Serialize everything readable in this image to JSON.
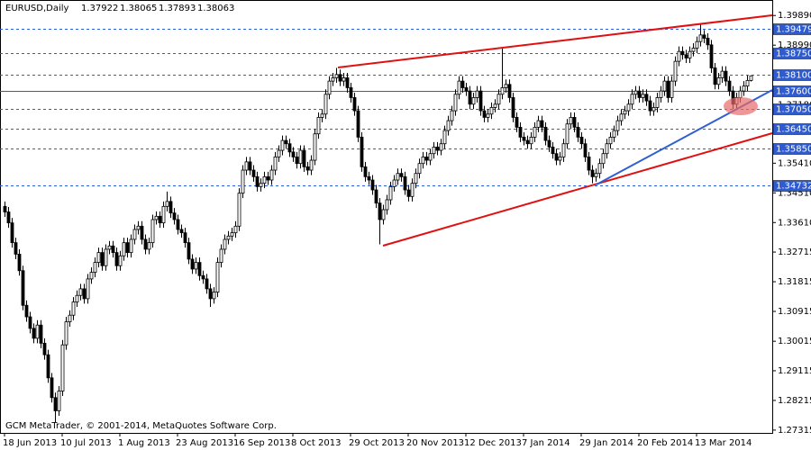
{
  "chart_data": {
    "type": "candlestick",
    "title": "EURUSD,Daily",
    "header_values": [
      1.37922,
      1.38065,
      1.37893,
      1.38063
    ],
    "footer": "GCM MetaTrader, © 2001-2014, MetaQuotes Software Corp.",
    "categories": [
      "18 Jun 2013",
      null,
      null,
      null,
      null,
      null,
      null,
      null,
      null,
      null,
      null,
      null,
      null,
      null,
      null,
      null,
      "10 Jul 2013",
      null,
      null,
      null,
      null,
      null,
      null,
      null,
      null,
      null,
      null,
      null,
      null,
      null,
      null,
      null,
      "1 Aug 2013",
      null,
      null,
      null,
      null,
      null,
      null,
      null,
      null,
      null,
      null,
      null,
      null,
      null,
      null,
      null,
      "23 Aug 2013",
      null,
      null,
      null,
      null,
      null,
      null,
      null,
      null,
      null,
      null,
      null,
      null,
      null,
      null,
      null,
      "16 Sep 2013",
      null,
      null,
      null,
      null,
      null,
      null,
      null,
      null,
      null,
      null,
      null,
      null,
      null,
      null,
      null,
      "8 Oct 2013",
      null,
      null,
      null,
      null,
      null,
      null,
      null,
      null,
      null,
      null,
      null,
      null,
      null,
      null,
      null,
      "29 Oct 2013",
      null,
      null,
      null,
      null,
      null,
      null,
      null,
      null,
      null,
      null,
      null,
      null,
      null,
      null,
      null,
      "20 Nov 2013",
      null,
      null,
      null,
      null,
      null,
      null,
      null,
      null,
      null,
      null,
      null,
      null,
      null,
      null,
      null,
      "12 Dec 2013",
      null,
      null,
      null,
      null,
      null,
      null,
      null,
      null,
      null,
      null,
      null,
      null,
      null,
      null,
      null,
      "7 Jan 2014",
      null,
      null,
      null,
      null,
      null,
      null,
      null,
      null,
      null,
      null,
      null,
      null,
      null,
      null,
      null,
      "29 Jan 2014",
      null,
      null,
      null,
      null,
      null,
      null,
      null,
      null,
      null,
      null,
      null,
      null,
      null,
      null,
      null,
      "20 Feb 2014",
      null,
      null,
      null,
      null,
      null,
      null,
      null,
      null,
      null,
      null,
      null,
      null,
      null,
      null,
      null,
      "13 Mar 2014",
      null,
      null,
      null,
      null,
      null,
      null,
      null,
      null,
      null,
      null,
      null,
      null,
      null,
      null,
      null
    ],
    "open": [
      1.341,
      1.3393,
      1.336,
      1.33,
      1.3265,
      1.3215,
      1.311,
      1.3075,
      1.304,
      1.301,
      1.305,
      1.2995,
      1.296,
      1.289,
      1.283,
      1.279,
      1.285,
      1.299,
      1.306,
      1.308,
      1.312,
      1.314,
      1.316,
      1.313,
      1.319,
      1.321,
      1.324,
      1.327,
      1.323,
      1.328,
      1.329,
      1.327,
      1.323,
      1.326,
      1.33,
      1.327,
      1.331,
      1.334,
      1.335,
      1.331,
      1.328,
      1.33,
      1.337,
      1.338,
      1.336,
      1.341,
      1.3425,
      1.339,
      1.337,
      1.334,
      1.333,
      1.33,
      1.325,
      1.322,
      1.324,
      1.32,
      1.319,
      1.316,
      1.313,
      1.315,
      1.324,
      1.328,
      1.331,
      1.332,
      1.333,
      1.335,
      1.345,
      1.352,
      1.3545,
      1.352,
      1.35,
      1.347,
      1.348,
      1.35,
      1.349,
      1.352,
      1.356,
      1.358,
      1.361,
      1.36,
      1.3575,
      1.356,
      1.354,
      1.358,
      1.353,
      1.352,
      1.355,
      1.363,
      1.368,
      1.369,
      1.375,
      1.379,
      1.38,
      1.381,
      1.379,
      1.38,
      1.377,
      1.374,
      1.37,
      1.362,
      1.353,
      1.35,
      1.349,
      1.346,
      1.342,
      1.337,
      1.34,
      1.343,
      1.347,
      1.349,
      1.351,
      1.35,
      1.346,
      1.344,
      1.348,
      1.351,
      1.354,
      1.356,
      1.355,
      1.357,
      1.359,
      1.358,
      1.36,
      1.364,
      1.367,
      1.37,
      1.375,
      1.379,
      1.377,
      1.376,
      1.372,
      1.374,
      1.376,
      1.37,
      1.368,
      1.369,
      1.371,
      1.372,
      1.375,
      1.377,
      1.378,
      1.374,
      1.368,
      1.365,
      1.362,
      1.361,
      1.36,
      1.362,
      1.365,
      1.367,
      1.365,
      1.361,
      1.359,
      1.357,
      1.355,
      1.356,
      1.36,
      1.366,
      1.368,
      1.365,
      1.362,
      1.36,
      1.356,
      1.352,
      1.35,
      1.351,
      1.354,
      1.357,
      1.36,
      1.362,
      1.364,
      1.367,
      1.369,
      1.37,
      1.372,
      1.375,
      1.376,
      1.374,
      1.375,
      1.373,
      1.37,
      1.371,
      1.374,
      1.376,
      1.379,
      1.374,
      1.379,
      1.385,
      1.388,
      1.387,
      1.386,
      1.388,
      1.389,
      1.391,
      1.393,
      1.392,
      1.39,
      1.383,
      1.378,
      1.38,
      1.382,
      1.379,
      1.376,
      1.372,
      1.374,
      1.376,
      1.3775,
      1.3792
    ],
    "high": [
      1.3425,
      1.3408,
      1.3375,
      1.3315,
      1.328,
      1.323,
      1.3125,
      1.309,
      1.3055,
      1.3065,
      1.3065,
      1.301,
      1.2975,
      1.2905,
      1.2845,
      1.2865,
      1.3005,
      1.3075,
      1.3095,
      1.3135,
      1.3155,
      1.3175,
      1.3175,
      1.3205,
      1.3225,
      1.3255,
      1.3285,
      1.3285,
      1.3295,
      1.3305,
      1.3305,
      1.3285,
      1.3275,
      1.3315,
      1.3315,
      1.3325,
      1.3355,
      1.3365,
      1.3365,
      1.3325,
      1.3315,
      1.3385,
      1.3395,
      1.3395,
      1.3425,
      1.3455,
      1.344,
      1.3405,
      1.3385,
      1.3355,
      1.3345,
      1.3315,
      1.3265,
      1.3255,
      1.3255,
      1.3215,
      1.3205,
      1.3175,
      1.3165,
      1.3255,
      1.3295,
      1.3325,
      1.3335,
      1.3345,
      1.3365,
      1.3465,
      1.3535,
      1.356,
      1.356,
      1.3535,
      1.3515,
      1.3495,
      1.3515,
      1.3515,
      1.3535,
      1.3575,
      1.3595,
      1.3625,
      1.3625,
      1.3615,
      1.359,
      1.3575,
      1.3595,
      1.3595,
      1.3545,
      1.3565,
      1.3645,
      1.3695,
      1.3705,
      1.3765,
      1.3805,
      1.3815,
      1.383,
      1.3825,
      1.3815,
      1.3815,
      1.3785,
      1.3755,
      1.3715,
      1.3635,
      1.3545,
      1.3515,
      1.3505,
      1.3475,
      1.3435,
      1.3415,
      1.3445,
      1.3485,
      1.3505,
      1.3525,
      1.3525,
      1.3515,
      1.3475,
      1.3495,
      1.3525,
      1.3555,
      1.3575,
      1.3575,
      1.3585,
      1.3605,
      1.3605,
      1.3615,
      1.3655,
      1.3685,
      1.3715,
      1.3765,
      1.3805,
      1.3805,
      1.3785,
      1.3775,
      1.3755,
      1.3775,
      1.3775,
      1.3715,
      1.3705,
      1.3725,
      1.3735,
      1.3765,
      1.389,
      1.3795,
      1.3795,
      1.3755,
      1.3695,
      1.3665,
      1.3635,
      1.3625,
      1.3635,
      1.3665,
      1.3685,
      1.3685,
      1.3665,
      1.3625,
      1.3605,
      1.3585,
      1.3575,
      1.3615,
      1.3675,
      1.3695,
      1.3695,
      1.3665,
      1.3635,
      1.3615,
      1.3575,
      1.3535,
      1.3525,
      1.3555,
      1.3585,
      1.3615,
      1.3635,
      1.3655,
      1.3685,
      1.3705,
      1.3715,
      1.3735,
      1.3765,
      1.3775,
      1.3775,
      1.3765,
      1.3765,
      1.3745,
      1.3725,
      1.3755,
      1.3775,
      1.3805,
      1.3805,
      1.3805,
      1.3865,
      1.3895,
      1.3895,
      1.3885,
      1.3895,
      1.3905,
      1.3925,
      1.3965,
      1.3945,
      1.3935,
      1.3915,
      1.3845,
      1.3815,
      1.3835,
      1.3835,
      1.3805,
      1.3775,
      1.3755,
      1.3775,
      1.379,
      1.3807,
      1.3807
    ],
    "low": [
      1.3378,
      1.3345,
      1.3285,
      1.325,
      1.32,
      1.3095,
      1.306,
      1.3025,
      1.2995,
      1.2995,
      1.298,
      1.2945,
      1.2875,
      1.2815,
      1.2755,
      1.2775,
      1.2835,
      1.2975,
      1.3045,
      1.3065,
      1.3105,
      1.3125,
      1.3115,
      1.3115,
      1.3175,
      1.3195,
      1.3225,
      1.3215,
      1.3215,
      1.3265,
      1.3255,
      1.3215,
      1.3215,
      1.3245,
      1.3255,
      1.3255,
      1.3295,
      1.3325,
      1.3295,
      1.3265,
      1.3265,
      1.3285,
      1.3355,
      1.3345,
      1.3345,
      1.3395,
      1.3375,
      1.3355,
      1.3325,
      1.3315,
      1.3285,
      1.3235,
      1.3205,
      1.3205,
      1.3185,
      1.3175,
      1.3145,
      1.3105,
      1.3115,
      1.3135,
      1.3225,
      1.3265,
      1.3295,
      1.3305,
      1.3315,
      1.3335,
      1.3435,
      1.3505,
      1.3505,
      1.3485,
      1.3455,
      1.3455,
      1.3465,
      1.3475,
      1.3475,
      1.3505,
      1.3545,
      1.3565,
      1.3585,
      1.356,
      1.3545,
      1.3525,
      1.3525,
      1.3515,
      1.3505,
      1.3505,
      1.3535,
      1.3615,
      1.3665,
      1.3675,
      1.3735,
      1.3775,
      1.3785,
      1.3775,
      1.3775,
      1.3755,
      1.3725,
      1.3685,
      1.3605,
      1.3515,
      1.3485,
      1.3475,
      1.3445,
      1.3405,
      1.3295,
      1.3355,
      1.3385,
      1.3415,
      1.3455,
      1.3475,
      1.3485,
      1.3445,
      1.3425,
      1.3425,
      1.3465,
      1.3495,
      1.3525,
      1.3535,
      1.3535,
      1.3555,
      1.3565,
      1.3565,
      1.3585,
      1.3625,
      1.3655,
      1.3685,
      1.3735,
      1.3755,
      1.3745,
      1.3705,
      1.3705,
      1.3725,
      1.3685,
      1.3665,
      1.3665,
      1.3675,
      1.3695,
      1.3705,
      1.3735,
      1.3755,
      1.3725,
      1.3665,
      1.3635,
      1.3605,
      1.3595,
      1.3585,
      1.3585,
      1.3605,
      1.3635,
      1.3635,
      1.3595,
      1.3575,
      1.3555,
      1.3535,
      1.3535,
      1.3545,
      1.3585,
      1.3645,
      1.3635,
      1.3605,
      1.3585,
      1.3545,
      1.3505,
      1.348,
      1.3485,
      1.3495,
      1.3525,
      1.3555,
      1.3585,
      1.3605,
      1.3625,
      1.3655,
      1.3675,
      1.3685,
      1.3705,
      1.3735,
      1.3725,
      1.3725,
      1.3715,
      1.3685,
      1.3685,
      1.3695,
      1.3725,
      1.3745,
      1.3725,
      1.3725,
      1.3775,
      1.3835,
      1.3855,
      1.3845,
      1.3845,
      1.3865,
      1.3875,
      1.3895,
      1.3905,
      1.3885,
      1.3815,
      1.3765,
      1.3765,
      1.3785,
      1.3775,
      1.3745,
      1.3705,
      1.3705,
      1.3725,
      1.3745,
      1.376,
      1.3789
    ],
    "close": [
      1.3393,
      1.336,
      1.33,
      1.3265,
      1.3215,
      1.311,
      1.3075,
      1.304,
      1.301,
      1.305,
      1.2995,
      1.296,
      1.289,
      1.283,
      1.279,
      1.285,
      1.299,
      1.306,
      1.308,
      1.312,
      1.314,
      1.316,
      1.313,
      1.319,
      1.321,
      1.324,
      1.327,
      1.323,
      1.328,
      1.329,
      1.327,
      1.323,
      1.326,
      1.33,
      1.327,
      1.331,
      1.334,
      1.335,
      1.331,
      1.328,
      1.33,
      1.337,
      1.338,
      1.336,
      1.341,
      1.3425,
      1.339,
      1.337,
      1.334,
      1.333,
      1.33,
      1.325,
      1.322,
      1.324,
      1.32,
      1.319,
      1.316,
      1.313,
      1.315,
      1.324,
      1.328,
      1.331,
      1.332,
      1.333,
      1.335,
      1.345,
      1.352,
      1.3545,
      1.352,
      1.35,
      1.347,
      1.348,
      1.35,
      1.349,
      1.352,
      1.356,
      1.358,
      1.361,
      1.36,
      1.3575,
      1.356,
      1.354,
      1.358,
      1.353,
      1.352,
      1.355,
      1.363,
      1.368,
      1.369,
      1.375,
      1.379,
      1.38,
      1.381,
      1.379,
      1.38,
      1.377,
      1.374,
      1.37,
      1.362,
      1.353,
      1.35,
      1.349,
      1.346,
      1.342,
      1.337,
      1.34,
      1.343,
      1.347,
      1.349,
      1.351,
      1.35,
      1.346,
      1.344,
      1.348,
      1.351,
      1.354,
      1.356,
      1.355,
      1.357,
      1.359,
      1.358,
      1.36,
      1.364,
      1.367,
      1.37,
      1.375,
      1.379,
      1.377,
      1.376,
      1.372,
      1.374,
      1.376,
      1.37,
      1.368,
      1.369,
      1.371,
      1.372,
      1.375,
      1.377,
      1.378,
      1.374,
      1.368,
      1.365,
      1.362,
      1.361,
      1.36,
      1.362,
      1.365,
      1.367,
      1.365,
      1.361,
      1.359,
      1.357,
      1.355,
      1.356,
      1.36,
      1.366,
      1.368,
      1.365,
      1.362,
      1.36,
      1.356,
      1.352,
      1.35,
      1.351,
      1.354,
      1.357,
      1.36,
      1.362,
      1.364,
      1.367,
      1.369,
      1.37,
      1.372,
      1.375,
      1.376,
      1.374,
      1.375,
      1.373,
      1.37,
      1.371,
      1.374,
      1.376,
      1.379,
      1.374,
      1.379,
      1.385,
      1.388,
      1.387,
      1.386,
      1.388,
      1.389,
      1.391,
      1.393,
      1.392,
      1.39,
      1.383,
      1.378,
      1.38,
      1.382,
      1.379,
      1.376,
      1.372,
      1.374,
      1.376,
      1.3775,
      1.3792,
      1.3806
    ],
    "up_color": "#ffffff",
    "down_color": "#000000",
    "ylim": [
      1.2723,
      1.4036
    ],
    "yticks": [
      {
        "value": 1.3989,
        "label": "1.39890"
      },
      {
        "value": 1.3899,
        "label": "1.38990"
      },
      {
        "value": 1.3718,
        "label": "1.37180"
      },
      {
        "value": 1.3541,
        "label": "1.35410"
      },
      {
        "value": 1.3451,
        "label": "1.34510"
      },
      {
        "value": 1.3361,
        "label": "1.33610"
      },
      1.32715,
      1.31815,
      1.30915,
      {
        "value": 1.3001,
        "label": "1.30015"
      },
      1.29115,
      1.28215,
      1.27315
    ],
    "levels": [
      1.39479,
      {
        "value": 1.3875,
        "label": "1.38750"
      },
      {
        "value": 1.381,
        "label": "1.38100"
      },
      {
        "value": 1.376,
        "label": "1.37600"
      },
      {
        "value": 1.3705,
        "label": "1.37050"
      },
      {
        "value": 1.3645,
        "label": "1.36450"
      },
      {
        "value": 1.3585,
        "label": "1.35850"
      },
      1.34732
    ],
    "level_color": "#2e5bd0",
    "grid": false
  }
}
